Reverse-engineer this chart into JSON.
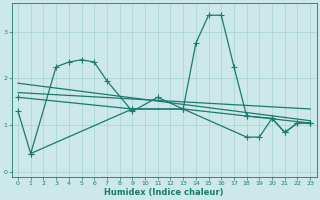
{
  "xlabel": "Humidex (Indice chaleur)",
  "background_color": "#cce8e8",
  "line_color": "#1a7a6e",
  "xlim": [
    -0.5,
    23.5
  ],
  "ylim": [
    -0.1,
    3.6
  ],
  "yticks": [
    0,
    1,
    2,
    3
  ],
  "xticks": [
    0,
    1,
    2,
    3,
    4,
    5,
    6,
    7,
    8,
    9,
    10,
    11,
    12,
    13,
    14,
    15,
    16,
    17,
    18,
    19,
    20,
    21,
    22,
    23
  ],
  "line1_x": [
    0,
    1,
    3,
    4,
    5,
    6,
    7,
    9,
    11,
    13,
    14,
    15,
    16,
    17,
    18,
    20,
    21,
    22,
    23
  ],
  "line1_y": [
    1.3,
    0.4,
    2.25,
    2.35,
    2.4,
    2.35,
    1.95,
    1.3,
    1.6,
    1.35,
    2.75,
    3.35,
    3.35,
    2.25,
    1.2,
    1.15,
    0.85,
    1.05,
    1.05
  ],
  "line2_x": [
    0,
    9,
    13,
    18,
    23
  ],
  "line2_y": [
    1.6,
    1.35,
    1.35,
    1.2,
    1.05
  ],
  "trend1_x": [
    0,
    23
  ],
  "trend1_y": [
    1.9,
    1.1
  ],
  "trend2_x": [
    0,
    23
  ],
  "trend2_y": [
    1.7,
    1.35
  ],
  "line3_x": [
    1,
    9,
    13,
    18,
    19,
    20,
    21,
    22,
    23
  ],
  "line3_y": [
    0.4,
    1.35,
    1.35,
    0.75,
    0.75,
    1.15,
    0.85,
    1.05,
    1.05
  ]
}
